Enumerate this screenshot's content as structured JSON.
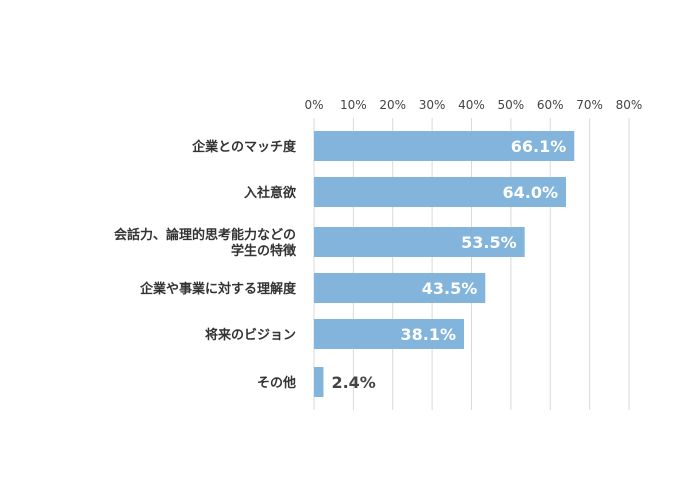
{
  "chart_data": {
    "type": "bar",
    "orientation": "horizontal",
    "title": "",
    "xlabel": "",
    "ylabel": "",
    "categories": [
      [
        "企業とのマッチ度"
      ],
      [
        "入社意欲"
      ],
      [
        "会話力、論理的思考能力などの",
        "学生の特徴"
      ],
      [
        "企業や事業に対する理解度"
      ],
      [
        "将来のビジョン"
      ],
      [
        "その他"
      ]
    ],
    "values": [
      66.1,
      64.0,
      53.5,
      43.5,
      38.1,
      2.4
    ],
    "value_labels": [
      "66.1%",
      "64.0%",
      "53.5%",
      "43.5%",
      "38.1%",
      "2.4%"
    ],
    "xlim": [
      0,
      80
    ],
    "ticks": [
      "0%",
      "10%",
      "20%",
      "30%",
      "40%",
      "50%",
      "60%",
      "70%",
      "80%"
    ],
    "tick_values": [
      0,
      10,
      20,
      30,
      40,
      50,
      60,
      70,
      80
    ],
    "axis_position": "top",
    "grid": true,
    "colors": {
      "bar": "#82b4dc",
      "grid": "#d9d9d9",
      "axis_text": "#444444",
      "label_text": "#333333",
      "value_inside": "#ffffff",
      "value_outside": "#444444"
    }
  }
}
